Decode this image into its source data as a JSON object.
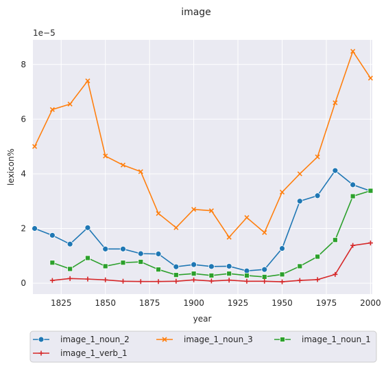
{
  "chart_data": {
    "type": "line",
    "title": "image",
    "xlabel": "year",
    "ylabel": "lexicon%",
    "y_scale_label": "1e−5",
    "xlim": [
      1809,
      2001
    ],
    "ylim": [
      -0.4,
      8.9
    ],
    "x_ticks": [
      1825,
      1850,
      1875,
      1900,
      1925,
      1950,
      1975,
      2000
    ],
    "y_ticks": [
      0,
      2,
      4,
      6,
      8
    ],
    "grid": true,
    "legend_position": "bottom",
    "series": [
      {
        "name": "image_1_noun_2",
        "color": "#1f77b4",
        "marker": "circle",
        "x": [
          1810,
          1820,
          1830,
          1840,
          1850,
          1860,
          1870,
          1880,
          1890,
          1900,
          1910,
          1920,
          1930,
          1940,
          1950,
          1960,
          1970,
          1980,
          1990,
          2000
        ],
        "values": [
          2.0,
          1.75,
          1.43,
          2.03,
          1.25,
          1.25,
          1.08,
          1.07,
          0.6,
          0.68,
          0.61,
          0.62,
          0.45,
          0.5,
          1.27,
          3.0,
          3.2,
          4.12,
          3.6,
          3.37
        ]
      },
      {
        "name": "image_1_noun_3",
        "color": "#ff7f0e",
        "marker": "x",
        "x": [
          1810,
          1820,
          1830,
          1840,
          1850,
          1860,
          1870,
          1880,
          1890,
          1900,
          1910,
          1920,
          1930,
          1940,
          1950,
          1960,
          1970,
          1980,
          1990,
          2000
        ],
        "values": [
          5.0,
          6.35,
          6.55,
          7.4,
          4.65,
          4.32,
          4.08,
          2.55,
          2.03,
          2.7,
          2.65,
          1.68,
          2.4,
          1.85,
          3.33,
          4.0,
          4.62,
          6.6,
          8.48,
          7.5
        ]
      },
      {
        "name": "image_1_noun_1",
        "color": "#2ca02c",
        "marker": "square",
        "x": [
          1820,
          1830,
          1840,
          1850,
          1860,
          1870,
          1880,
          1890,
          1900,
          1910,
          1920,
          1930,
          1940,
          1950,
          1960,
          1970,
          1980,
          1990,
          2000
        ],
        "values": [
          0.75,
          0.52,
          0.92,
          0.62,
          0.75,
          0.78,
          0.5,
          0.3,
          0.35,
          0.28,
          0.35,
          0.28,
          0.23,
          0.32,
          0.62,
          0.97,
          1.58,
          3.18,
          3.38
        ]
      },
      {
        "name": "image_1_verb_1",
        "color": "#d62728",
        "marker": "plus",
        "x": [
          1820,
          1830,
          1840,
          1850,
          1860,
          1870,
          1880,
          1890,
          1900,
          1910,
          1920,
          1930,
          1940,
          1950,
          1960,
          1970,
          1980,
          1990,
          2000
        ],
        "values": [
          0.1,
          0.17,
          0.15,
          0.12,
          0.07,
          0.06,
          0.06,
          0.07,
          0.12,
          0.08,
          0.11,
          0.07,
          0.07,
          0.05,
          0.1,
          0.13,
          0.32,
          1.38,
          1.47
        ]
      }
    ]
  }
}
